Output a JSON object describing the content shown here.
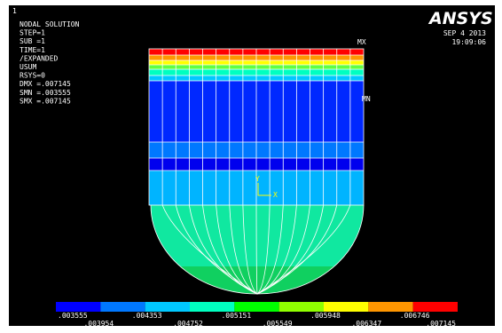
{
  "window": {
    "number": "1",
    "logo": "ANSYS",
    "date": "SEP  4 2013",
    "time": "19:09:06"
  },
  "info": [
    "NODAL SOLUTION",
    "STEP=1",
    "SUB =1",
    "TIME=1",
    "/EXPANDED",
    "USUM",
    "RSYS=0",
    "DMX =.007145",
    "SMN =.003555",
    "SMX =.007145"
  ],
  "model": {
    "max_label": "MX",
    "min_label": "MN",
    "axis_y": "Y",
    "axis_x": "X"
  },
  "legend": {
    "colors": [
      "#0000ff",
      "#0078ff",
      "#00c8ff",
      "#00ffc0",
      "#00ff00",
      "#90ff00",
      "#ffff00",
      "#ff9600",
      "#ff0000"
    ],
    "labels": [
      ".003555",
      ".003954",
      ".004353",
      ".004752",
      ".005151",
      ".005549",
      ".005948",
      ".006347",
      ".006746",
      ".007145"
    ]
  }
}
